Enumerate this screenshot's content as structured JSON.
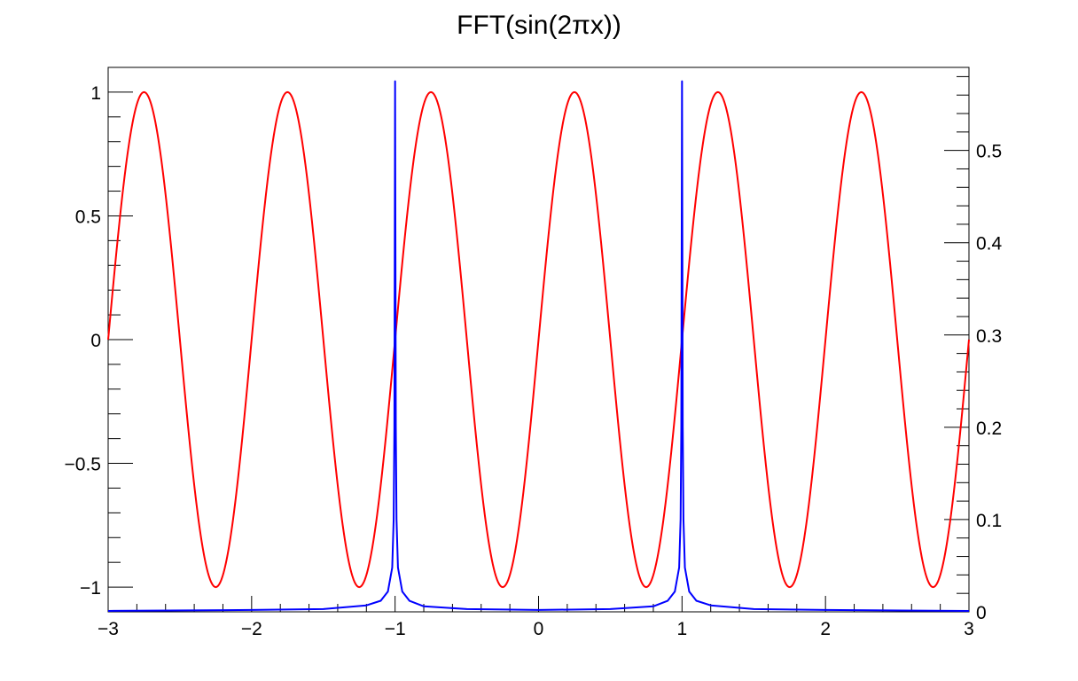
{
  "chart_data": {
    "type": "line",
    "title": "FFT(sin(2πx))",
    "xlabel": "",
    "ylabel": "",
    "xlim": [
      -3,
      3
    ],
    "ylim_left": [
      -1.1,
      1.1
    ],
    "ylim_right": [
      0,
      0.59
    ],
    "grid": false,
    "x_ticks": [
      -3,
      -2,
      -1,
      0,
      1,
      2,
      3
    ],
    "x_tick_labels": [
      "−3",
      "−2",
      "−1",
      "0",
      "1",
      "2",
      "3"
    ],
    "y_left_ticks": [
      -1,
      -0.5,
      0,
      0.5,
      1
    ],
    "y_left_tick_labels": [
      "−1",
      "−0.5",
      "0",
      "0.5",
      "1"
    ],
    "y_right_ticks": [
      0,
      0.1,
      0.2,
      0.3,
      0.4,
      0.5
    ],
    "y_right_tick_labels": [
      "0",
      "0.1",
      "0.2",
      "0.3",
      "0.4",
      "0.5"
    ],
    "series": [
      {
        "function": "sin(2πx)",
        "axis": "left",
        "color": "#ff0000",
        "points": {
          "x": [
            -3,
            -2.75,
            -2.5,
            -2.25,
            -2,
            -1.75,
            -1.5,
            -1.25,
            -1,
            -0.75,
            -0.5,
            -0.25,
            0,
            0.25,
            0.5,
            0.75,
            1,
            1.25,
            1.5,
            1.75,
            2,
            2.25,
            2.5,
            2.75,
            3
          ],
          "y": [
            0,
            1,
            0,
            -1,
            0,
            1,
            0,
            -1,
            0,
            1,
            0,
            -1,
            0,
            1,
            0,
            -1,
            0,
            1,
            0,
            -1,
            0,
            1,
            0,
            -1,
            0
          ]
        }
      },
      {
        "function": "|FFT|",
        "axis": "right",
        "color": "#0000ff",
        "points": {
          "x": [
            -3,
            -2,
            -1.5,
            -1.2,
            -1.1,
            -1.05,
            -1.02,
            -1.01,
            -1.005,
            -1,
            -0.995,
            -0.99,
            -0.98,
            -0.95,
            -0.9,
            -0.8,
            -0.5,
            0,
            0.5,
            0.8,
            0.9,
            0.95,
            0.98,
            0.99,
            0.995,
            1,
            1.005,
            1.01,
            1.02,
            1.05,
            1.1,
            1.2,
            1.5,
            2,
            3
          ],
          "y": [
            0.001,
            0.002,
            0.003,
            0.007,
            0.012,
            0.022,
            0.048,
            0.1,
            0.2,
            0.575,
            0.2,
            0.1,
            0.048,
            0.022,
            0.012,
            0.006,
            0.003,
            0.002,
            0.003,
            0.006,
            0.012,
            0.022,
            0.048,
            0.1,
            0.2,
            0.575,
            0.2,
            0.1,
            0.048,
            0.022,
            0.012,
            0.007,
            0.003,
            0.002,
            0.001
          ]
        }
      }
    ]
  }
}
